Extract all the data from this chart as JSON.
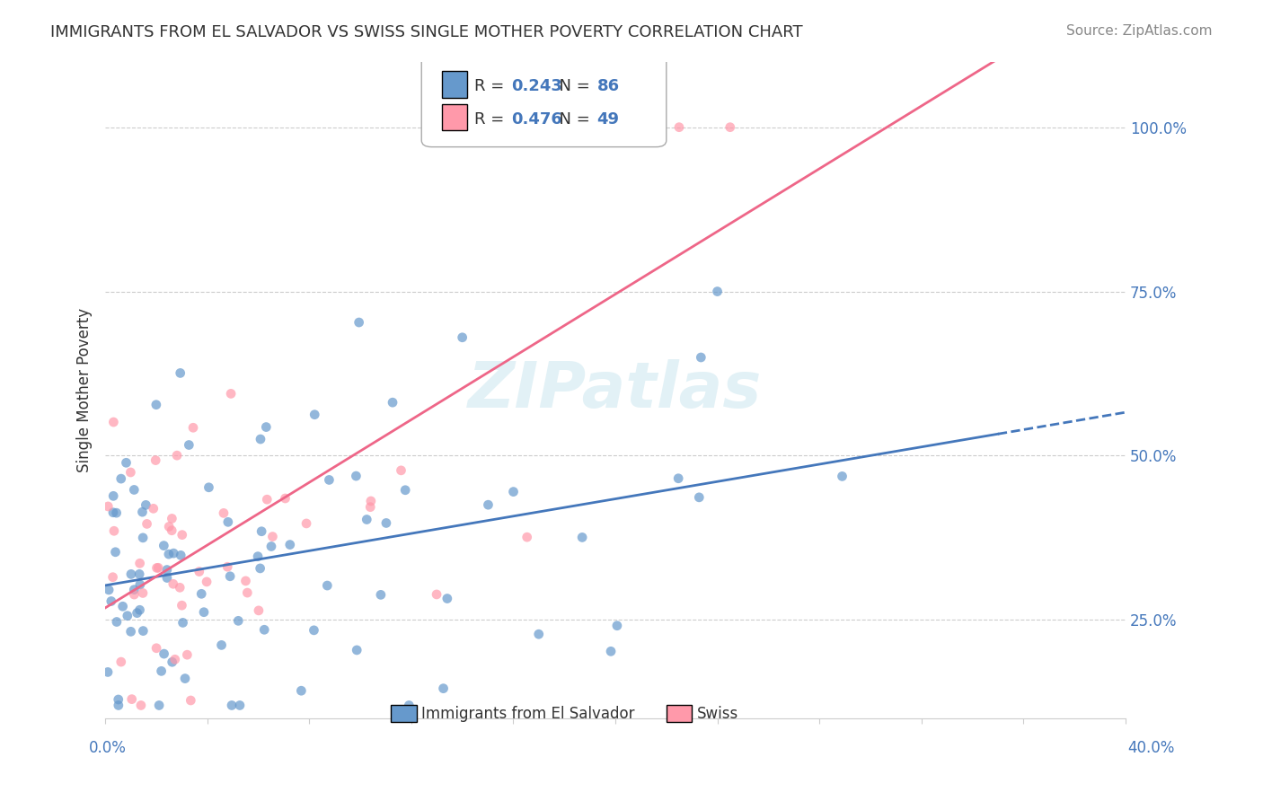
{
  "title": "IMMIGRANTS FROM EL SALVADOR VS SWISS SINGLE MOTHER POVERTY CORRELATION CHART",
  "source": "Source: ZipAtlas.com",
  "ylabel": "Single Mother Poverty",
  "blue_R": 0.243,
  "blue_N": 86,
  "pink_R": 0.476,
  "pink_N": 49,
  "blue_color": "#6699CC",
  "pink_color": "#FF99AA",
  "blue_line_color": "#4477BB",
  "pink_line_color": "#EE6688",
  "right_yticks": [
    0.25,
    0.5,
    0.75,
    1.0
  ],
  "right_ytick_labels": [
    "25.0%",
    "50.0%",
    "75.0%",
    "100.0%"
  ],
  "xlim": [
    0.0,
    0.4
  ],
  "ylim": [
    0.1,
    1.1
  ]
}
